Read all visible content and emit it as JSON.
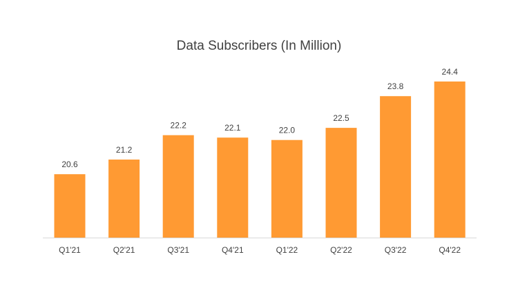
{
  "chart_data": {
    "type": "bar",
    "title": "Data Subscribers (In Million)",
    "categories": [
      "Q1'21",
      "Q2'21",
      "Q3'21",
      "Q4'21",
      "Q1'22",
      "Q2'22",
      "Q3'22",
      "Q4'22"
    ],
    "values": [
      20.6,
      21.2,
      22.2,
      22.1,
      22.0,
      22.5,
      23.8,
      24.4
    ],
    "data_labels": [
      "20.6",
      "21.2",
      "22.2",
      "22.1",
      "22.0",
      "22.5",
      "23.8",
      "24.4"
    ],
    "ylim": [
      18.0,
      25.0
    ],
    "grid": false,
    "legend": "none",
    "colors": {
      "bar": "#ff9a33",
      "axis": "#d9d9d9",
      "label_text": "#404040"
    }
  }
}
